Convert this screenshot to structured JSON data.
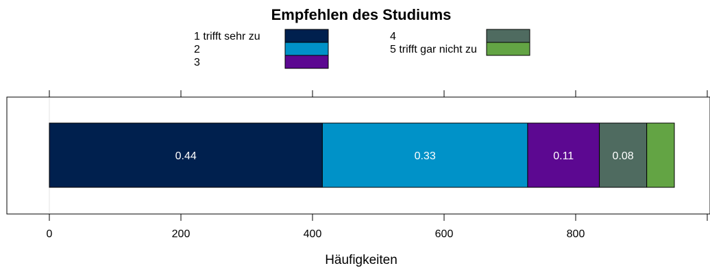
{
  "chart_data": {
    "type": "bar",
    "orientation": "horizontal",
    "stacked": true,
    "title": "Empfehlen des Studiums",
    "xlabel": "Häufigkeiten",
    "ylabel": "",
    "xlim": [
      -80,
      1000
    ],
    "xticks": [
      0,
      200,
      400,
      600,
      800
    ],
    "grid": false,
    "legend_position": "top",
    "series": [
      {
        "name": "1 trifft sehr zu",
        "value": 415,
        "label": "0.44",
        "color": "#00204E"
      },
      {
        "name": "2",
        "value": 312,
        "label": "0.33",
        "color": "#0092C8"
      },
      {
        "name": "3",
        "value": 109,
        "label": "0.11",
        "color": "#5C0891"
      },
      {
        "name": "4",
        "value": 72,
        "label": "0.08",
        "color": "#4F6B60"
      },
      {
        "name": "5 trifft gar nicht zu",
        "value": 42,
        "label": "",
        "color": "#63A444"
      }
    ]
  }
}
